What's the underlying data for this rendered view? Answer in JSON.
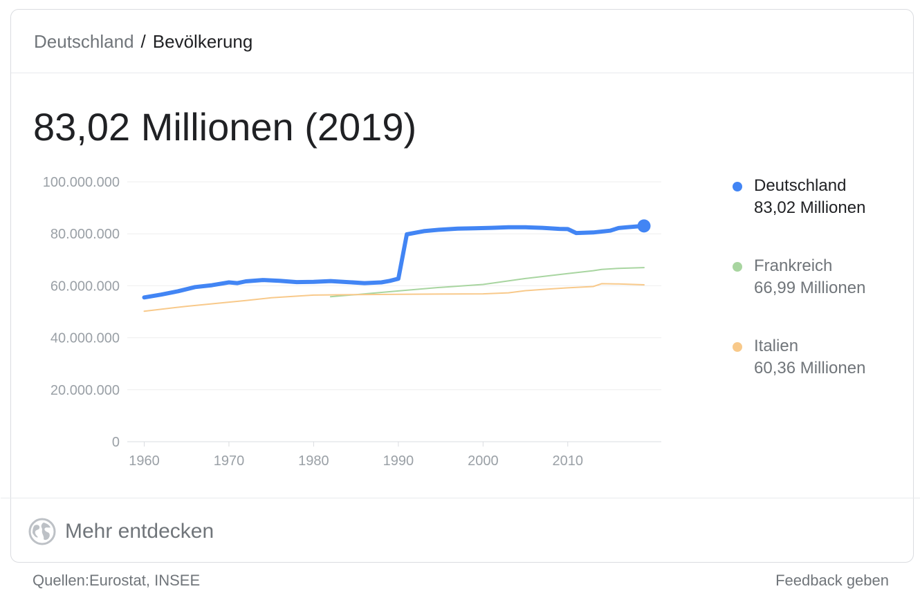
{
  "breadcrumb": {
    "parent": "Deutschland",
    "separator": "/",
    "current": "Bevölkerung"
  },
  "headline": "83,02 Millionen (2019)",
  "legend": [
    {
      "name": "Deutschland",
      "value": "83,02 Millionen",
      "color": "#4285f4",
      "active": true
    },
    {
      "name": "Frankreich",
      "value": "66,99 Millionen",
      "color": "#a8d5a0",
      "active": false
    },
    {
      "name": "Italien",
      "value": "60,36 Millionen",
      "color": "#f8c98a",
      "active": false
    }
  ],
  "explore": {
    "label": "Mehr entdecken",
    "icon": "globe-icon"
  },
  "footer": {
    "sources": "Quellen:Eurostat, INSEE",
    "feedback": "Feedback geben"
  },
  "chart_data": {
    "type": "line",
    "title": "",
    "xlabel": "",
    "ylabel": "",
    "xlim": [
      1960,
      2019
    ],
    "ylim": [
      0,
      100000000
    ],
    "x_ticks": [
      1960,
      1970,
      1980,
      1990,
      2000,
      2010
    ],
    "x_tick_labels": [
      "1960",
      "1970",
      "1980",
      "1990",
      "2000",
      "2010"
    ],
    "y_ticks": [
      0,
      20000000,
      40000000,
      60000000,
      80000000,
      100000000
    ],
    "y_tick_labels": [
      "0",
      "20.000.000",
      "40.000.000",
      "60.000.000",
      "80.000.000",
      "100.000.000"
    ],
    "grid": true,
    "legend_position": "right",
    "series": [
      {
        "name": "Deutschland",
        "color": "#4285f4",
        "highlight": true,
        "points": [
          [
            1960,
            55500000
          ],
          [
            1962,
            56600000
          ],
          [
            1964,
            57900000
          ],
          [
            1966,
            59500000
          ],
          [
            1968,
            60200000
          ],
          [
            1970,
            61300000
          ],
          [
            1971,
            61000000
          ],
          [
            1972,
            61700000
          ],
          [
            1974,
            62200000
          ],
          [
            1976,
            61900000
          ],
          [
            1978,
            61400000
          ],
          [
            1980,
            61500000
          ],
          [
            1982,
            61800000
          ],
          [
            1984,
            61400000
          ],
          [
            1986,
            61000000
          ],
          [
            1988,
            61300000
          ],
          [
            1989,
            61900000
          ],
          [
            1990,
            62700000
          ],
          [
            1991,
            79800000
          ],
          [
            1993,
            81000000
          ],
          [
            1995,
            81600000
          ],
          [
            1997,
            82000000
          ],
          [
            1999,
            82100000
          ],
          [
            2001,
            82300000
          ],
          [
            2003,
            82500000
          ],
          [
            2005,
            82500000
          ],
          [
            2007,
            82300000
          ],
          [
            2009,
            81900000
          ],
          [
            2010,
            81800000
          ],
          [
            2011,
            80300000
          ],
          [
            2013,
            80500000
          ],
          [
            2015,
            81200000
          ],
          [
            2016,
            82200000
          ],
          [
            2017,
            82500000
          ],
          [
            2018,
            82800000
          ],
          [
            2019,
            83020000
          ]
        ]
      },
      {
        "name": "Frankreich",
        "color": "#a8d5a0",
        "highlight": false,
        "points": [
          [
            1982,
            55800000
          ],
          [
            1985,
            56600000
          ],
          [
            1990,
            58000000
          ],
          [
            1995,
            59400000
          ],
          [
            2000,
            60500000
          ],
          [
            2005,
            62800000
          ],
          [
            2010,
            64700000
          ],
          [
            2013,
            65800000
          ],
          [
            2014,
            66300000
          ],
          [
            2016,
            66700000
          ],
          [
            2019,
            66990000
          ]
        ]
      },
      {
        "name": "Italien",
        "color": "#f8c98a",
        "highlight": false,
        "points": [
          [
            1960,
            50200000
          ],
          [
            1965,
            52100000
          ],
          [
            1970,
            53700000
          ],
          [
            1972,
            54300000
          ],
          [
            1975,
            55400000
          ],
          [
            1980,
            56400000
          ],
          [
            1985,
            56600000
          ],
          [
            1990,
            56700000
          ],
          [
            1995,
            56800000
          ],
          [
            2000,
            56900000
          ],
          [
            2003,
            57300000
          ],
          [
            2005,
            58100000
          ],
          [
            2007,
            58600000
          ],
          [
            2010,
            59200000
          ],
          [
            2013,
            59700000
          ],
          [
            2014,
            60800000
          ],
          [
            2016,
            60700000
          ],
          [
            2019,
            60360000
          ]
        ]
      }
    ]
  }
}
